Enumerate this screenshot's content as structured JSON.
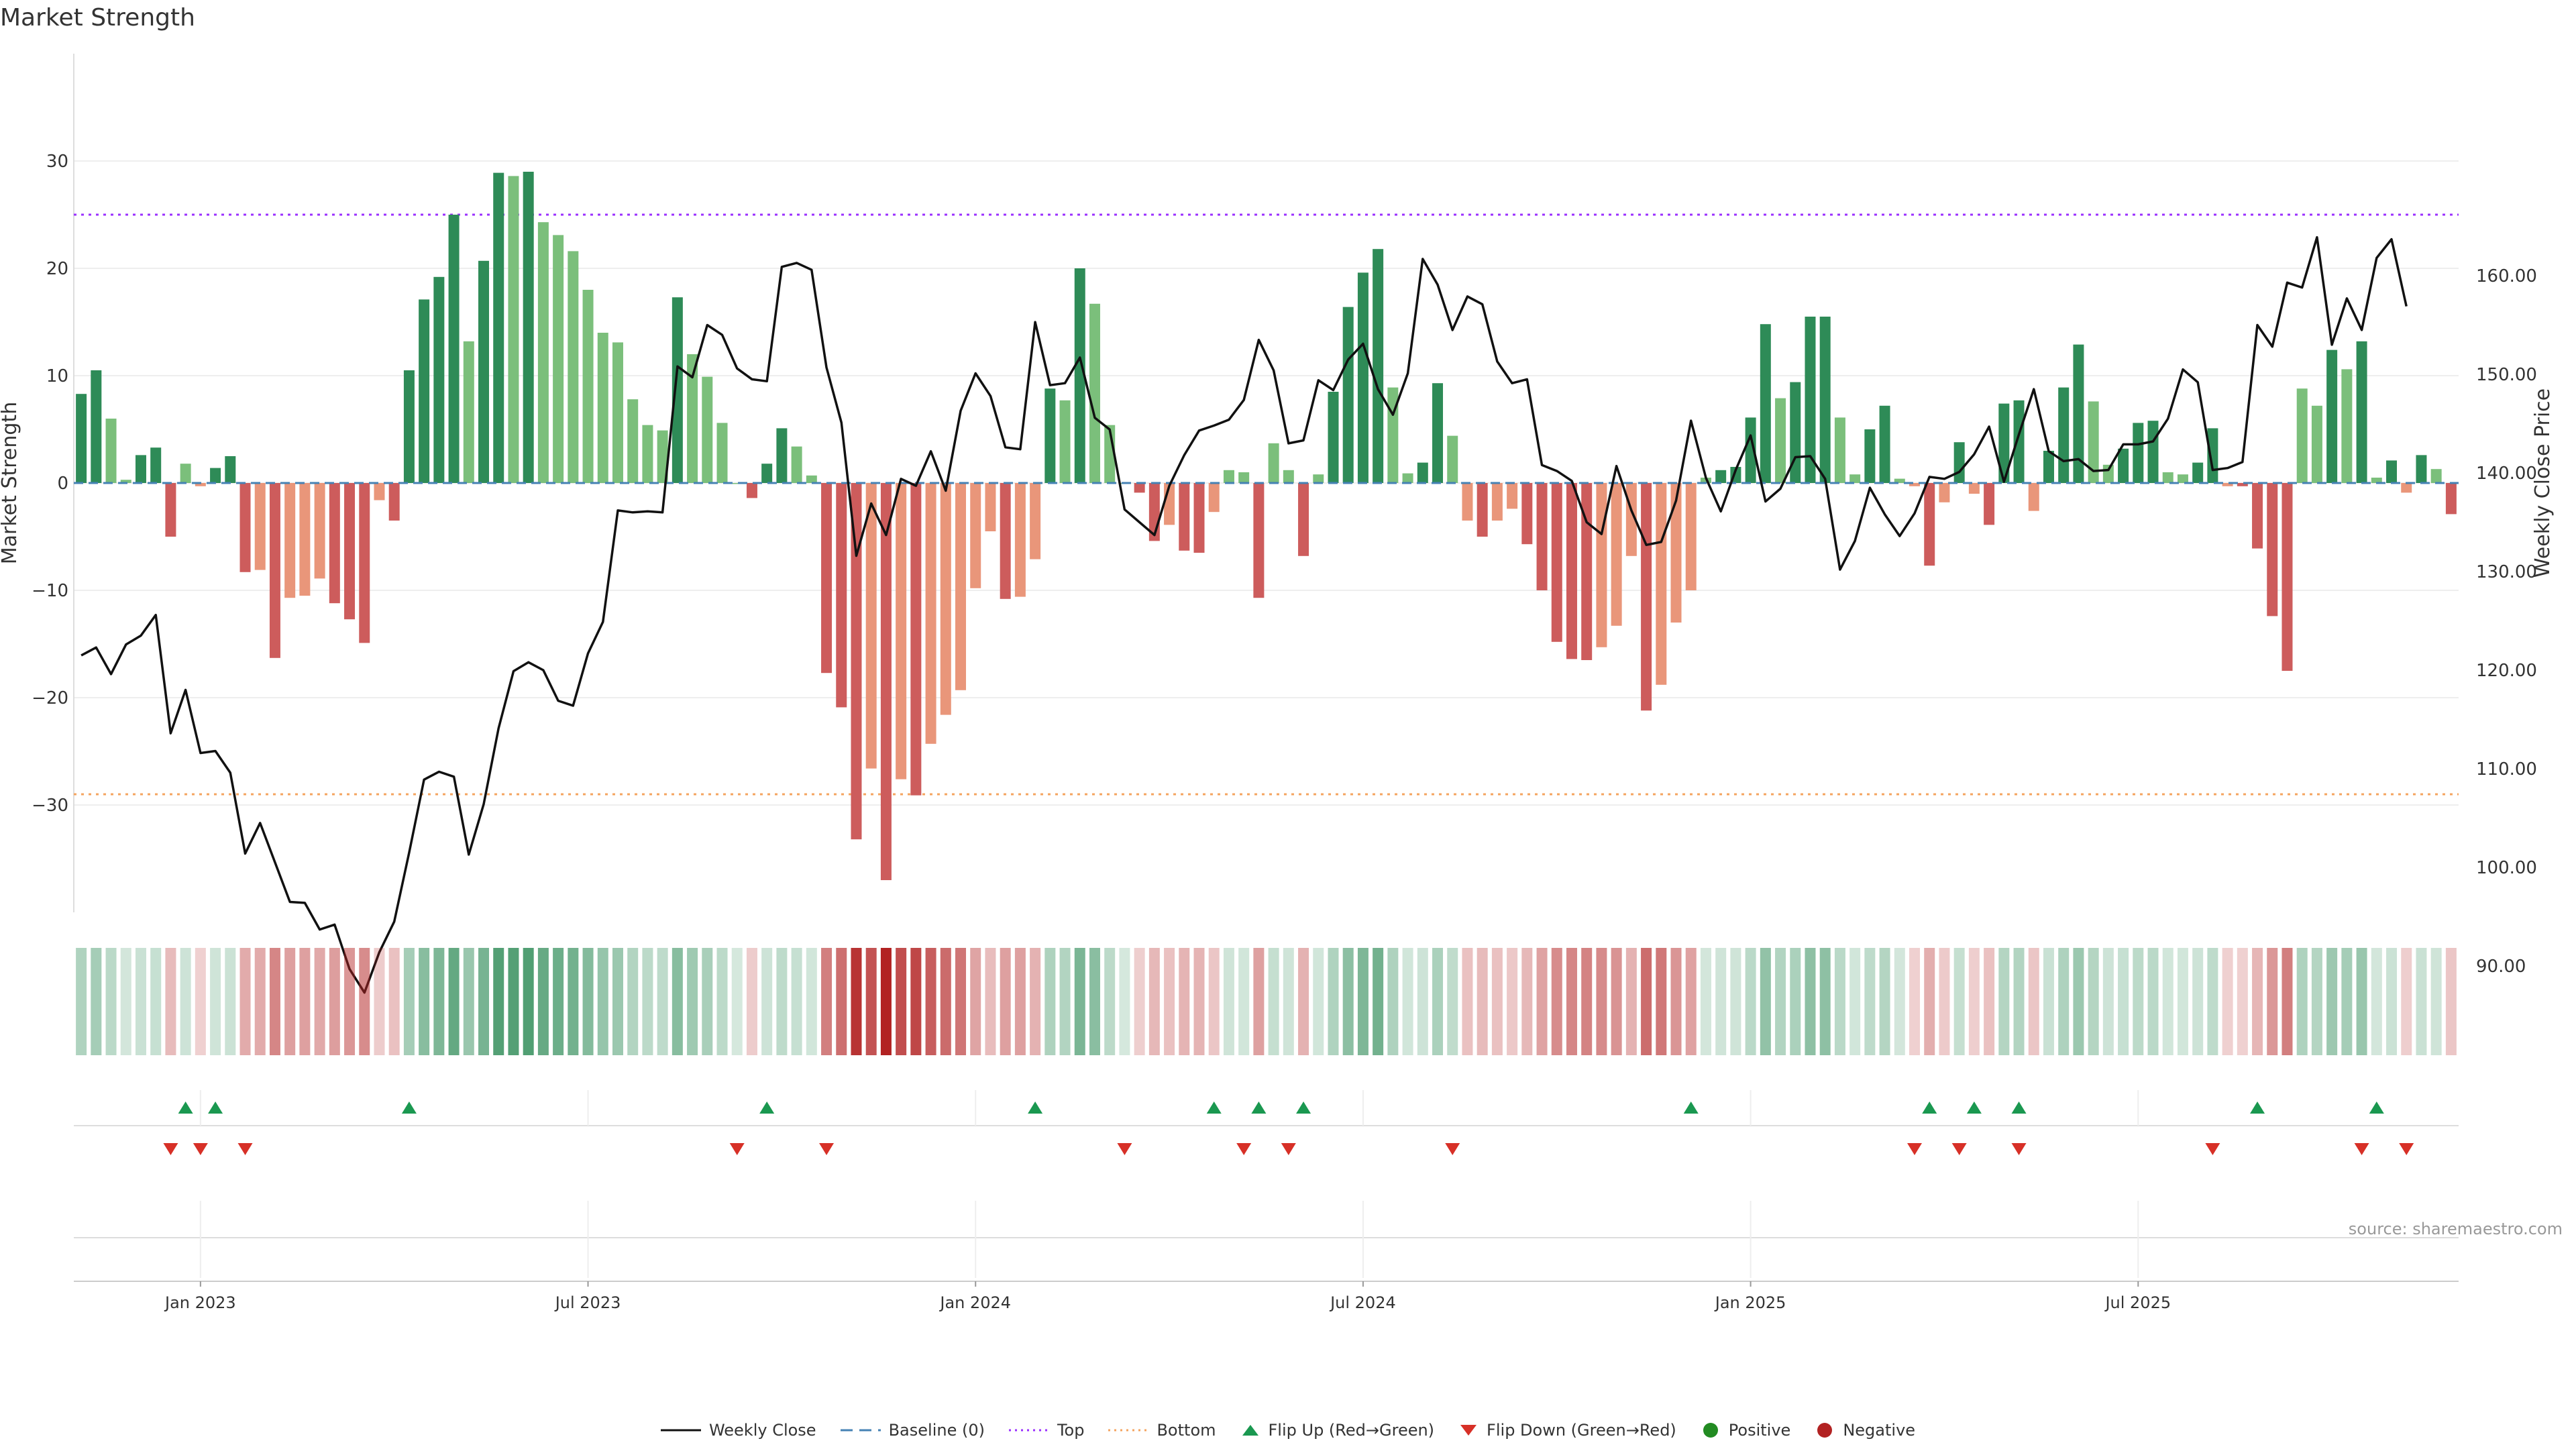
{
  "chart_data": {
    "type": "bar+line",
    "title": "Market Strength",
    "ylabel_left": "Market Strength",
    "ylabel_right": "Weekly Close Price",
    "left_ticks": [
      30,
      20,
      10,
      0,
      -10,
      -20,
      -30
    ],
    "left_tick_labels": [
      "30",
      "20",
      "10",
      "0",
      "−10",
      "−20",
      "−30"
    ],
    "right_ticks": [
      160,
      150,
      140,
      130,
      120,
      110,
      100,
      90
    ],
    "right_tick_labels": [
      "160.00",
      "150.00",
      "140.00",
      "130.00",
      "120.00",
      "110.00",
      "100.00",
      "90.00"
    ],
    "top_line": 25,
    "bottom_line": -29,
    "x_tick_labels": [
      "Jan 2023",
      "Jul 2023",
      "Jan 2024",
      "Jul 2024",
      "Jan 2025",
      "Jul 2025"
    ],
    "x_tick_positions": [
      8,
      34,
      60,
      86,
      112,
      138
    ],
    "values": [
      8.3,
      10.5,
      6.0,
      0.3,
      2.6,
      3.3,
      -5.0,
      1.8,
      -0.3,
      1.4,
      2.5,
      -8.3,
      -8.1,
      -16.3,
      -10.7,
      -10.5,
      -8.9,
      -11.2,
      -12.7,
      -14.9,
      -1.6,
      -3.5,
      10.5,
      17.1,
      19.2,
      25.0,
      13.2,
      20.7,
      28.9,
      28.6,
      29.0,
      24.3,
      23.1,
      21.6,
      18.0,
      14.0,
      13.1,
      7.8,
      5.4,
      4.9,
      17.3,
      12.0,
      9.9,
      5.6,
      0.0,
      -1.4,
      1.8,
      5.1,
      3.4,
      0.7,
      -17.7,
      -20.9,
      -33.2,
      -26.6,
      -37.0,
      -27.6,
      -29.1,
      -24.3,
      -21.6,
      -19.3,
      -9.8,
      -4.5,
      -10.8,
      -10.6,
      -7.1,
      8.8,
      7.7,
      20.0,
      16.7,
      5.4,
      0.0,
      -0.9,
      -5.4,
      -3.9,
      -6.3,
      -6.5,
      -2.7,
      1.2,
      1.0,
      -10.7,
      3.7,
      1.2,
      -6.8,
      0.8,
      8.5,
      16.4,
      19.6,
      21.8,
      8.9,
      0.9,
      1.9,
      9.3,
      4.4,
      -3.5,
      -5.0,
      -3.5,
      -2.4,
      -5.7,
      -10.0,
      -14.8,
      -16.4,
      -16.5,
      -15.3,
      -13.3,
      -6.8,
      -21.2,
      -18.8,
      -13.0,
      -10.0,
      0.5,
      1.2,
      1.5,
      6.1,
      14.8,
      7.9,
      9.4,
      15.5,
      15.5,
      6.1,
      0.8,
      5.0,
      7.2,
      0.4,
      -0.3,
      -7.7,
      -1.8,
      3.8,
      -1.0,
      -3.9,
      7.4,
      7.7,
      -2.6,
      3.0,
      8.9,
      12.9,
      7.6,
      1.7,
      3.2,
      5.6,
      5.8,
      1.0,
      0.8,
      1.9,
      5.1,
      -0.3,
      -0.3,
      -6.1,
      -12.4,
      -17.5,
      8.8,
      7.2,
      12.4,
      10.6,
      13.2,
      0.5,
      2.1,
      -0.9,
      2.6,
      1.3,
      -2.9
    ],
    "weekly_close": [
      121.5,
      122.3,
      119.6,
      122.6,
      123.5,
      125.6,
      113.6,
      118.0,
      111.6,
      111.8,
      109.6,
      101.4,
      104.5,
      100.5,
      96.5,
      96.4,
      93.7,
      94.2,
      89.7,
      87.3,
      91.4,
      94.5,
      101.5,
      108.9,
      109.7,
      109.2,
      101.3,
      106.4,
      114.1,
      119.9,
      120.8,
      120.0,
      116.9,
      116.4,
      121.7,
      124.9,
      136.2,
      136.0,
      136.1,
      136.0,
      150.8,
      149.7,
      155.0,
      154.0,
      150.6,
      149.5,
      149.3,
      160.9,
      161.3,
      160.6,
      150.7,
      145.1,
      131.6,
      136.9,
      133.7,
      139.4,
      138.7,
      142.2,
      138.2,
      146.3,
      150.1,
      147.8,
      142.6,
      142.4,
      155.3,
      148.9,
      149.1,
      151.7,
      145.6,
      144.4,
      136.3,
      135.0,
      133.7,
      138.7,
      141.8,
      144.3,
      144.8,
      145.4,
      147.4,
      153.5,
      150.4,
      143.0,
      143.3,
      149.4,
      148.4,
      151.5,
      153.1,
      148.5,
      145.9,
      150.1,
      161.7,
      159.1,
      154.5,
      157.9,
      157.1,
      151.3,
      149.1,
      149.5,
      140.8,
      140.2,
      139.2,
      135.0,
      133.8,
      140.7,
      136.2,
      132.7,
      133.0,
      137.2,
      145.3,
      139.5,
      136.1,
      140.3,
      143.8,
      137.1,
      138.4,
      141.6,
      141.7,
      139.4,
      130.2,
      133.1,
      138.5,
      135.8,
      133.6,
      135.9,
      139.6,
      139.4,
      140.1,
      141.9,
      144.7,
      139.1,
      143.9,
      148.5,
      142.2,
      141.2,
      141.4,
      140.2,
      140.3,
      142.9,
      142.9,
      143.2,
      145.5,
      150.5,
      149.2,
      140.3,
      140.5,
      141.1,
      155.0,
      152.8,
      159.3,
      158.8,
      163.9,
      153.0,
      157.7,
      154.5,
      161.8,
      163.7,
      156.9
    ],
    "flips_up": [
      7,
      9,
      22,
      46,
      64,
      76,
      79,
      82,
      108,
      124,
      127,
      130,
      146,
      154
    ],
    "flips_down": [
      6,
      8,
      11,
      44,
      50,
      70,
      78,
      81,
      92,
      123,
      126,
      130,
      143,
      153,
      156
    ],
    "source": "source: sharemaestro.com",
    "legend": [
      "Weekly Close",
      "Baseline (0)",
      "Top",
      "Bottom",
      "Flip Up (Red→Green)",
      "Flip Down (Green→Red)",
      "Positive",
      "Negative"
    ],
    "colors": {
      "pos_strong": "#2e8b57",
      "pos_weak": "#7bbf7b",
      "neg_strong": "#cd5c5c",
      "neg_weak": "#e9967a",
      "top": "#9b30ff",
      "bottom": "#f4a460",
      "baseline": "#4682b4",
      "flip_up": "#1a9850",
      "flip_down": "#d73027",
      "line": "#111111"
    }
  }
}
